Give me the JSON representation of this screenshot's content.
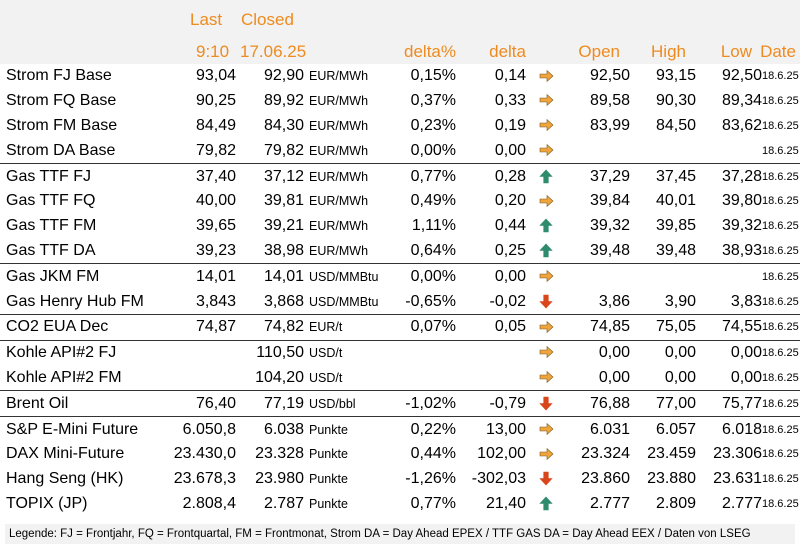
{
  "header": {
    "last": "Last",
    "closed": "Closed",
    "time": "9:10",
    "closed_date": "17.06.25",
    "delta_pct": "delta%",
    "delta": "delta",
    "open": "Open",
    "high": "High",
    "low": "Low",
    "date": "Date"
  },
  "colors": {
    "header_text": "#ee8b20",
    "arrow_flat": "#f0a43c",
    "arrow_up": "#2e8b6e",
    "arrow_down": "#d9461b"
  },
  "rows": [
    {
      "name": "Strom FJ Base",
      "last": "93,04",
      "closed": "92,90",
      "unit": "EUR/MWh",
      "delta_pct": "0,15%",
      "delta": "0,14",
      "trend": "flat",
      "open": "92,50",
      "high": "93,15",
      "low": "92,50",
      "date": "18.6.25",
      "sep": false
    },
    {
      "name": "Strom FQ Base",
      "last": "90,25",
      "closed": "89,92",
      "unit": "EUR/MWh",
      "delta_pct": "0,37%",
      "delta": "0,33",
      "trend": "flat",
      "open": "89,58",
      "high": "90,30",
      "low": "89,34",
      "date": "18.6.25",
      "sep": false
    },
    {
      "name": "Strom FM Base",
      "last": "84,49",
      "closed": "84,30",
      "unit": "EUR/MWh",
      "delta_pct": "0,23%",
      "delta": "0,19",
      "trend": "flat",
      "open": "83,99",
      "high": "84,50",
      "low": "83,62",
      "date": "18.6.25",
      "sep": false
    },
    {
      "name": "Strom DA Base",
      "last": "79,82",
      "closed": "79,82",
      "unit": "EUR/MWh",
      "delta_pct": "0,00%",
      "delta": "0,00",
      "trend": "flat",
      "open": "",
      "high": "",
      "low": "",
      "date": "18.6.25",
      "sep": false
    },
    {
      "name": "Gas TTF FJ",
      "last": "37,40",
      "closed": "37,12",
      "unit": "EUR/MWh",
      "delta_pct": "0,77%",
      "delta": "0,28",
      "trend": "up",
      "open": "37,29",
      "high": "37,45",
      "low": "37,28",
      "date": "18.6.25",
      "sep": true
    },
    {
      "name": "Gas TTF FQ",
      "last": "40,00",
      "closed": "39,81",
      "unit": "EUR/MWh",
      "delta_pct": "0,49%",
      "delta": "0,20",
      "trend": "flat",
      "open": "39,84",
      "high": "40,01",
      "low": "39,80",
      "date": "18.6.25",
      "sep": false
    },
    {
      "name": "Gas TTF FM",
      "last": "39,65",
      "closed": "39,21",
      "unit": "EUR/MWh",
      "delta_pct": "1,11%",
      "delta": "0,44",
      "trend": "up",
      "open": "39,32",
      "high": "39,85",
      "low": "39,32",
      "date": "18.6.25",
      "sep": false
    },
    {
      "name": "Gas TTF DA",
      "last": "39,23",
      "closed": "38,98",
      "unit": "EUR/MWh",
      "delta_pct": "0,64%",
      "delta": "0,25",
      "trend": "up",
      "open": "39,48",
      "high": "39,48",
      "low": "38,93",
      "date": "18.6.25",
      "sep": false
    },
    {
      "name": "Gas JKM FM",
      "last": "14,01",
      "closed": "14,01",
      "unit": "USD/MMBtu",
      "delta_pct": "0,00%",
      "delta": "0,00",
      "trend": "flat",
      "open": "",
      "high": "",
      "low": "",
      "date": "18.6.25",
      "sep": true
    },
    {
      "name": "Gas Henry Hub FM",
      "last": "3,843",
      "closed": "3,868",
      "unit": "USD/MMBtu",
      "delta_pct": "-0,65%",
      "delta": "-0,02",
      "trend": "down",
      "open": "3,86",
      "high": "3,90",
      "low": "3,83",
      "date": "18.6.25",
      "sep": false
    },
    {
      "name": "CO2 EUA Dec",
      "last": "74,87",
      "closed": "74,82",
      "unit": "EUR/t",
      "delta_pct": "0,07%",
      "delta": "0,05",
      "trend": "flat",
      "open": "74,85",
      "high": "75,05",
      "low": "74,55",
      "date": "18.6.25",
      "sep": true
    },
    {
      "name": "Kohle API#2 FJ",
      "last": "",
      "closed": "110,50",
      "unit": "USD/t",
      "delta_pct": "",
      "delta": "",
      "trend": "flat",
      "open": "0,00",
      "high": "0,00",
      "low": "0,00",
      "date": "18.6.25",
      "sep": true
    },
    {
      "name": "Kohle API#2 FM",
      "last": "",
      "closed": "104,20",
      "unit": "USD/t",
      "delta_pct": "",
      "delta": "",
      "trend": "flat",
      "open": "0,00",
      "high": "0,00",
      "low": "0,00",
      "date": "18.6.25",
      "sep": false
    },
    {
      "name": "Brent Oil",
      "last": "76,40",
      "closed": "77,19",
      "unit": "USD/bbl",
      "delta_pct": "-1,02%",
      "delta": "-0,79",
      "trend": "down",
      "open": "76,88",
      "high": "77,00",
      "low": "75,77",
      "date": "18.6.25",
      "sep": true
    },
    {
      "name": "S&P E-Mini Future",
      "last": "6.050,8",
      "closed": "6.038",
      "unit": "Punkte",
      "delta_pct": "0,22%",
      "delta": "13,00",
      "trend": "flat",
      "open": "6.031",
      "high": "6.057",
      "low": "6.018",
      "date": "18.6.25",
      "sep": true
    },
    {
      "name": "DAX Mini-Future",
      "last": "23.430,0",
      "closed": "23.328",
      "unit": "Punkte",
      "delta_pct": "0,44%",
      "delta": "102,00",
      "trend": "flat",
      "open": "23.324",
      "high": "23.459",
      "low": "23.306",
      "date": "18.6.25",
      "sep": false
    },
    {
      "name": "Hang Seng (HK)",
      "last": "23.678,3",
      "closed": "23.980",
      "unit": "Punkte",
      "delta_pct": "-1,26%",
      "delta": "-302,03",
      "trend": "down",
      "open": "23.860",
      "high": "23.880",
      "low": "23.631",
      "date": "18.6.25",
      "sep": false
    },
    {
      "name": "TOPIX (JP)",
      "last": "2.808,4",
      "closed": "2.787",
      "unit": "Punkte",
      "delta_pct": "0,77%",
      "delta": "21,40",
      "trend": "up",
      "open": "2.777",
      "high": "2.809",
      "low": "2.777",
      "date": "18.6.25",
      "sep": false
    }
  ],
  "legend": "Legende: FJ = Frontjahr, FQ = Frontquartal, FM = Frontmonat, Strom DA = Day Ahead EPEX / TTF GAS DA = Day Ahead EEX / Daten von LSEG"
}
